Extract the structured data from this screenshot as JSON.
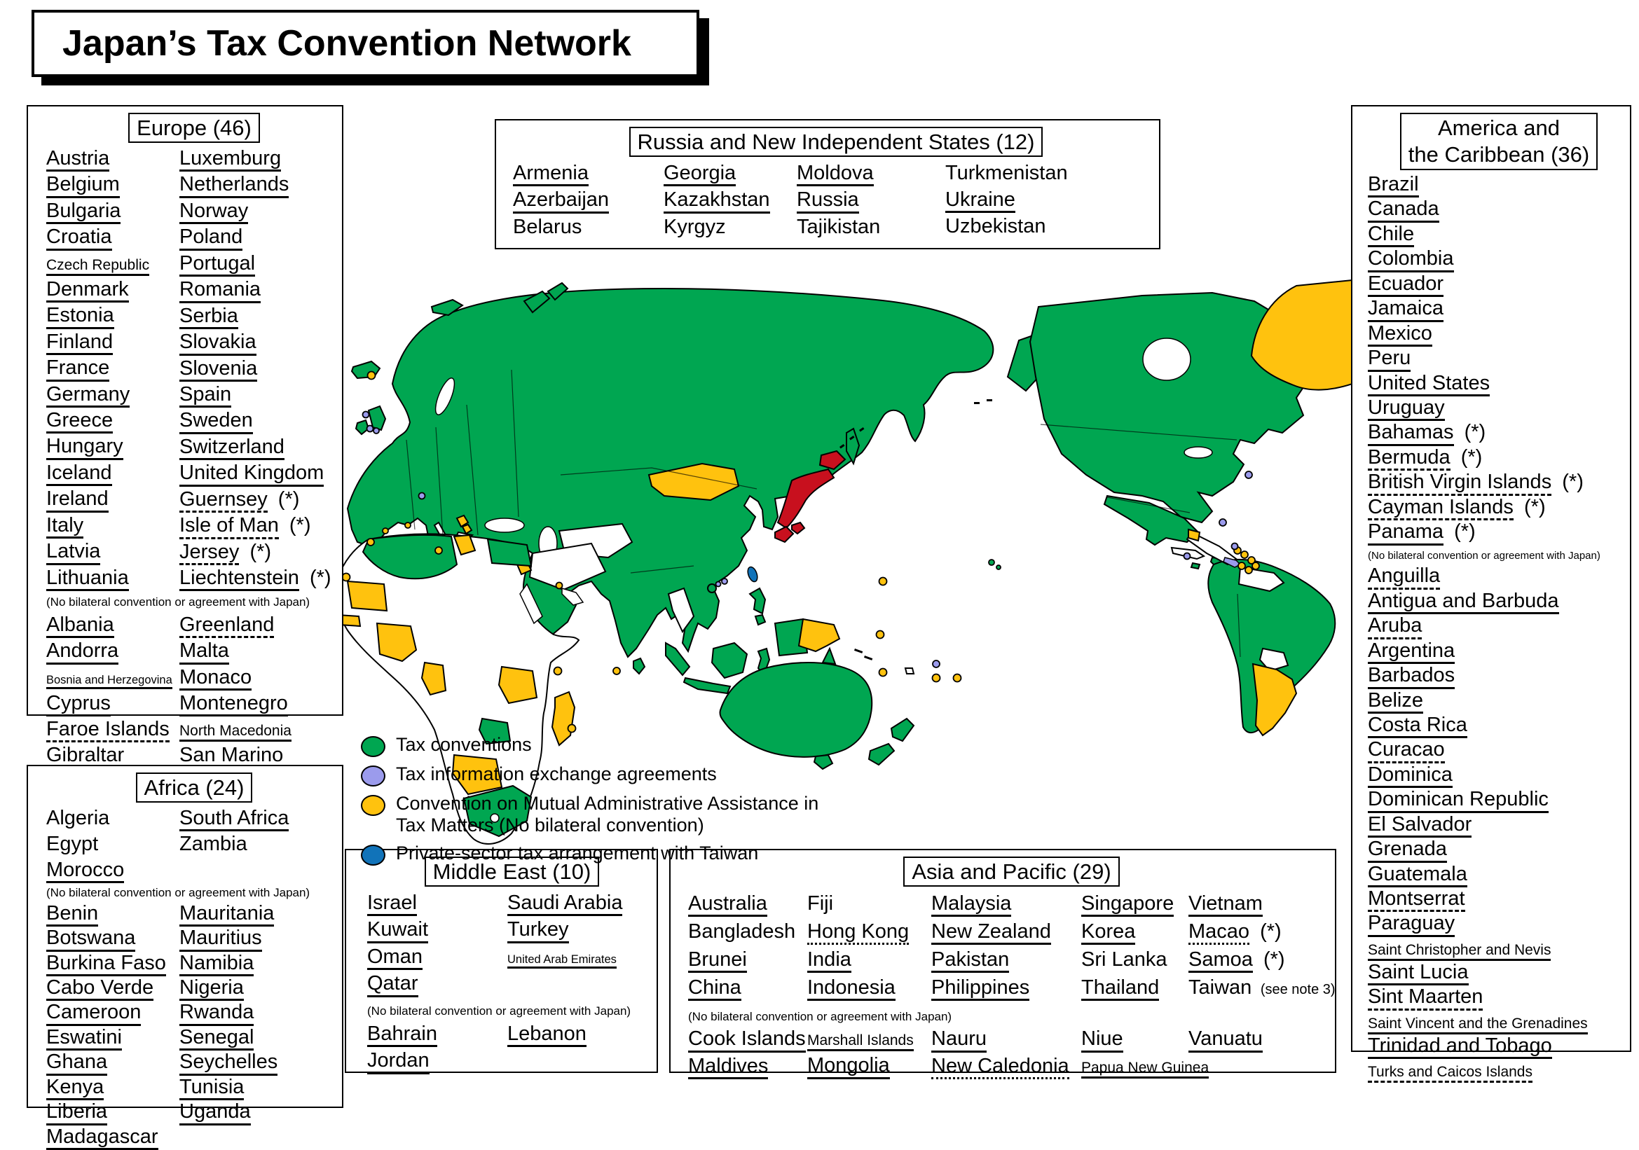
{
  "title": "Japan’s Tax Convention Network",
  "map": {
    "convention_green": "#00A651",
    "cmaa_yellow": "#FFC20E",
    "tiea_lavender": "#9B9BEC",
    "taiwan_blue": "#1173B9",
    "japan_red": "#C8101E",
    "no_agreement_white": "#FFFFFF",
    "outline_black": "#000000"
  },
  "legend": {
    "items": [
      {
        "icon": "green-circle-icon",
        "color": "#00A651",
        "label": "Tax conventions"
      },
      {
        "icon": "lavender-circle-icon",
        "color": "#9B9BEC",
        "label": "Tax information exchange agreements"
      },
      {
        "icon": "yellow-circle-icon",
        "color": "#FFC20E",
        "label": "Convention on Mutual Administrative Assistance in\nTax Matters (No bilateral convention)"
      },
      {
        "icon": "blue-circle-icon",
        "color": "#1173B9",
        "label": "Private-sector tax arrangement with Taiwan"
      }
    ]
  },
  "regions": {
    "europe": {
      "title": "Europe (46)",
      "note": "(No bilateral convention or agreement with Japan)",
      "cols": [
        [
          {
            "t": "Austria",
            "u": "s"
          },
          {
            "t": "Belgium",
            "u": "s"
          },
          {
            "t": "Bulgaria",
            "u": "s"
          },
          {
            "t": "Croatia",
            "u": "s"
          },
          {
            "t": "Czech Republic",
            "u": "s",
            "sz": "m"
          },
          {
            "t": "Denmark",
            "u": "s"
          },
          {
            "t": "Estonia",
            "u": "s"
          },
          {
            "t": "Finland",
            "u": "s"
          },
          {
            "t": "France",
            "u": "s"
          },
          {
            "t": "Germany",
            "u": "s"
          },
          {
            "t": "Greece",
            "u": "s"
          },
          {
            "t": "Hungary",
            "u": "s"
          },
          {
            "t": "Iceland",
            "u": "s"
          },
          {
            "t": "Ireland",
            "u": "s"
          },
          {
            "t": "Italy",
            "u": "s"
          },
          {
            "t": "Latvia",
            "u": "s"
          },
          {
            "t": "Lithuania",
            "u": "s"
          }
        ],
        [
          {
            "t": "Luxemburg",
            "u": "s"
          },
          {
            "t": "Netherlands",
            "u": "s"
          },
          {
            "t": "Norway",
            "u": "s"
          },
          {
            "t": "Poland",
            "u": "s"
          },
          {
            "t": "Portugal",
            "u": "s"
          },
          {
            "t": "Romania",
            "u": "s"
          },
          {
            "t": "Serbia",
            "u": "s"
          },
          {
            "t": "Slovakia",
            "u": "s"
          },
          {
            "t": "Slovenia",
            "u": "s"
          },
          {
            "t": "Spain",
            "u": "s"
          },
          {
            "t": "Sweden",
            "u": "s"
          },
          {
            "t": "Switzerland",
            "u": "s"
          },
          {
            "t": "United Kingdom",
            "u": "s"
          },
          {
            "t": "Guernsey",
            "u": "d",
            "s": " (*)"
          },
          {
            "t": "Isle of Man",
            "u": "d",
            "s": " (*)"
          },
          {
            "t": "Jersey",
            "u": "d",
            "s": " (*)"
          },
          {
            "t": "Liechtenstein",
            "u": "s",
            "s": " (*)"
          }
        ]
      ],
      "cols2": [
        [
          {
            "t": "Albania",
            "u": "s"
          },
          {
            "t": "Andorra",
            "u": "s"
          },
          {
            "t": "Bosnia and Herzegovina",
            "u": "s",
            "sz": "s"
          },
          {
            "t": "Cyprus",
            "u": "s"
          },
          {
            "t": "Faroe Islands",
            "u": "d"
          },
          {
            "t": "Gibraltar",
            "u": "d"
          }
        ],
        [
          {
            "t": "Greenland",
            "u": "d"
          },
          {
            "t": "Malta",
            "u": "s"
          },
          {
            "t": "Monaco",
            "u": "s"
          },
          {
            "t": "Montenegro",
            "u": "s"
          },
          {
            "t": "North Macedonia",
            "u": "s",
            "sz": "m"
          },
          {
            "t": "San Marino",
            "u": "s"
          }
        ]
      ]
    },
    "africa": {
      "title": "Africa (24)",
      "note": "(No bilateral convention or agreement with Japan)",
      "cols": [
        [
          {
            "t": "Algeria",
            "u": "n"
          },
          {
            "t": "Egypt",
            "u": "n"
          },
          {
            "t": "Morocco",
            "u": "s"
          }
        ],
        [
          {
            "t": "South Africa",
            "u": "s"
          },
          {
            "t": "Zambia",
            "u": "n"
          }
        ]
      ],
      "cols2": [
        [
          {
            "t": "Benin",
            "u": "s"
          },
          {
            "t": "Botswana",
            "u": "s"
          },
          {
            "t": "Burkina Faso",
            "u": "s"
          },
          {
            "t": "Cabo Verde",
            "u": "s"
          },
          {
            "t": "Cameroon",
            "u": "s"
          },
          {
            "t": "Eswatini",
            "u": "s"
          },
          {
            "t": "Ghana",
            "u": "s"
          },
          {
            "t": "Kenya",
            "u": "s"
          },
          {
            "t": "Liberia",
            "u": "s"
          },
          {
            "t": "Madagascar",
            "u": "s"
          }
        ],
        [
          {
            "t": "Mauritania",
            "u": "s"
          },
          {
            "t": "Mauritius",
            "u": "s"
          },
          {
            "t": "Namibia",
            "u": "s"
          },
          {
            "t": "Nigeria",
            "u": "s"
          },
          {
            "t": "Rwanda",
            "u": "s"
          },
          {
            "t": "Senegal",
            "u": "s"
          },
          {
            "t": "Seychelles",
            "u": "s"
          },
          {
            "t": "Tunisia",
            "u": "s"
          },
          {
            "t": "Uganda",
            "u": "s"
          }
        ]
      ]
    },
    "russia": {
      "title": "Russia and New Independent States (12)",
      "cols": [
        [
          {
            "t": "Armenia",
            "u": "s"
          },
          {
            "t": "Azerbaijan",
            "u": "s"
          },
          {
            "t": "Belarus",
            "u": "n"
          }
        ],
        [
          {
            "t": "Georgia",
            "u": "s"
          },
          {
            "t": "Kazakhstan",
            "u": "s"
          },
          {
            "t": "Kyrgyz",
            "u": "n"
          }
        ],
        [
          {
            "t": "Moldova",
            "u": "s"
          },
          {
            "t": "Russia",
            "u": "s"
          },
          {
            "t": "Tajikistan",
            "u": "n"
          }
        ],
        [
          {
            "t": "Turkmenistan",
            "u": "n"
          },
          {
            "t": "Ukraine",
            "u": "s"
          },
          {
            "t": "Uzbekistan",
            "u": "n"
          }
        ]
      ]
    },
    "america": {
      "title": "America and\nthe Caribbean (36)",
      "note": "(No bilateral convention or agreement with Japan)",
      "list1": [
        {
          "t": "Brazil",
          "u": "s"
        },
        {
          "t": "Canada",
          "u": "s"
        },
        {
          "t": "Chile",
          "u": "s"
        },
        {
          "t": "Colombia",
          "u": "s"
        },
        {
          "t": "Ecuador",
          "u": "s"
        },
        {
          "t": "Jamaica",
          "u": "s"
        },
        {
          "t": "Mexico",
          "u": "s"
        },
        {
          "t": "Peru",
          "u": "s"
        },
        {
          "t": "United States",
          "u": "s"
        },
        {
          "t": "Uruguay",
          "u": "s"
        },
        {
          "t": "Bahamas",
          "u": "s",
          "s": " (*)"
        },
        {
          "t": "Bermuda",
          "u": "d",
          "s": " (*)"
        },
        {
          "t": "British Virgin Islands",
          "u": "d",
          "s": " (*)"
        },
        {
          "t": "Cayman Islands",
          "u": "d",
          "s": " (*)"
        },
        {
          "t": "Panama",
          "u": "s",
          "s": " (*)"
        }
      ],
      "list2": [
        {
          "t": "Anguilla",
          "u": "d"
        },
        {
          "t": "Antigua and Barbuda",
          "u": "s"
        },
        {
          "t": "Aruba",
          "u": "d"
        },
        {
          "t": "Argentina",
          "u": "s"
        },
        {
          "t": "Barbados",
          "u": "s"
        },
        {
          "t": "Belize",
          "u": "s"
        },
        {
          "t": "Costa Rica",
          "u": "s"
        },
        {
          "t": "Curacao",
          "u": "d"
        },
        {
          "t": "Dominica",
          "u": "s"
        },
        {
          "t": "Dominican Republic",
          "u": "s"
        },
        {
          "t": "El Salvador",
          "u": "s"
        },
        {
          "t": "Grenada",
          "u": "s"
        },
        {
          "t": "Guatemala",
          "u": "s"
        },
        {
          "t": "Montserrat",
          "u": "d"
        },
        {
          "t": "Paraguay",
          "u": "s"
        },
        {
          "t": "Saint Christopher and Nevis",
          "u": "s",
          "sz": "m"
        },
        {
          "t": "Saint Lucia",
          "u": "s"
        },
        {
          "t": "Sint Maarten",
          "u": "d"
        },
        {
          "t": "Saint Vincent and the Grenadines",
          "u": "s",
          "sz": "m"
        },
        {
          "t": "Trinidad and Tobago",
          "u": "s"
        },
        {
          "t": "Turks and Caicos Islands",
          "u": "d",
          "sz": "m"
        }
      ]
    },
    "mideast": {
      "title": "Middle East (10)",
      "note": "(No bilateral convention or agreement with Japan)",
      "cols": [
        [
          {
            "t": "Israel",
            "u": "s"
          },
          {
            "t": "Kuwait",
            "u": "s"
          },
          {
            "t": "Oman",
            "u": "s"
          },
          {
            "t": "Qatar",
            "u": "s"
          }
        ],
        [
          {
            "t": "Saudi Arabia",
            "u": "s"
          },
          {
            "t": "Turkey",
            "u": "s"
          },
          {
            "t": "United Arab Emirates",
            "u": "s",
            "sz": "s"
          }
        ]
      ],
      "cols2": [
        [
          {
            "t": "Bahrain",
            "u": "s"
          },
          {
            "t": "Jordan",
            "u": "s"
          }
        ],
        [
          {
            "t": "Lebanon",
            "u": "s"
          }
        ]
      ]
    },
    "asiapac": {
      "title": "Asia and Pacific (29)",
      "note": "(No bilateral convention or agreement with Japan)",
      "cols": [
        [
          {
            "t": "Australia",
            "u": "s"
          },
          {
            "t": "Bangladesh",
            "u": "n"
          },
          {
            "t": "Brunei",
            "u": "s"
          },
          {
            "t": "China",
            "u": "s"
          }
        ],
        [
          {
            "t": "Fiji",
            "u": "n"
          },
          {
            "t": "Hong Kong",
            "u": "o"
          },
          {
            "t": "India",
            "u": "s"
          },
          {
            "t": "Indonesia",
            "u": "s"
          }
        ],
        [
          {
            "t": "Malaysia",
            "u": "s"
          },
          {
            "t": "New Zealand",
            "u": "s"
          },
          {
            "t": "Pakistan",
            "u": "s"
          },
          {
            "t": "Philippines",
            "u": "s"
          }
        ],
        [
          {
            "t": "Singapore",
            "u": "s"
          },
          {
            "t": "Korea",
            "u": "s"
          },
          {
            "t": "Sri Lanka",
            "u": "n"
          },
          {
            "t": "Thailand",
            "u": "s"
          }
        ],
        [
          {
            "t": "Vietnam",
            "u": "s"
          },
          {
            "t": "Macao",
            "u": "o",
            "s": " (*)"
          },
          {
            "t": "Samoa",
            "u": "s",
            "s": " (*)"
          },
          {
            "t": "Taiwan",
            "u": "n",
            "s": " (see note 3)",
            "sc": "m"
          }
        ]
      ],
      "cols2": [
        [
          {
            "t": "Cook Islands",
            "u": "s"
          },
          {
            "t": "Maldives",
            "u": "s"
          }
        ],
        [
          {
            "t": "Marshall Islands",
            "u": "s",
            "sz": "m"
          },
          {
            "t": "Mongolia",
            "u": "s"
          }
        ],
        [
          {
            "t": "Nauru",
            "u": "s"
          },
          {
            "t": "New Caledonia",
            "u": "o"
          }
        ],
        [
          {
            "t": "Niue",
            "u": "s"
          },
          {
            "t": "Papua New Guinea",
            "u": "s",
            "sz": "m"
          }
        ],
        [
          {
            "t": "Vanuatu",
            "u": "s"
          }
        ]
      ]
    }
  }
}
